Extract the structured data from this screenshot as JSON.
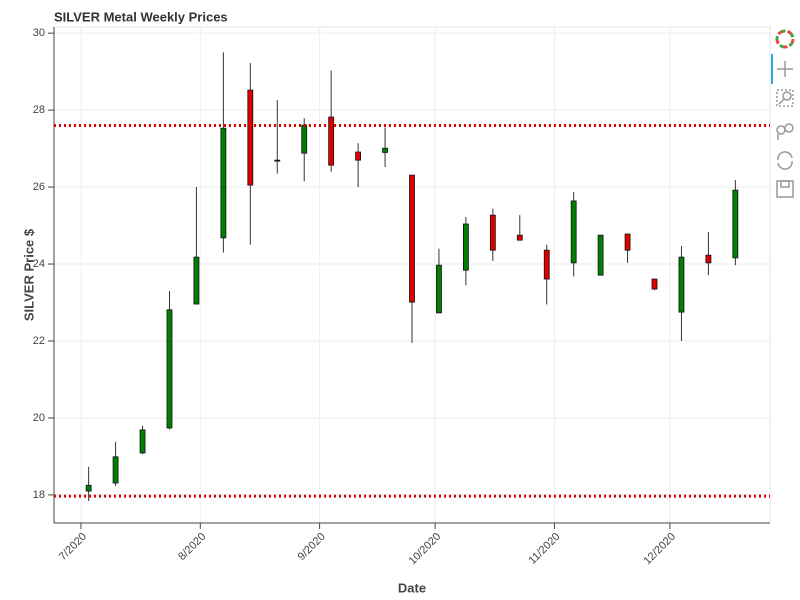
{
  "chart_data": {
    "type": "candlestick",
    "title": "SILVER Metal Weekly Prices",
    "x_label": "Date",
    "y_label": "SILVER Price $",
    "x": [
      "2020-07-03",
      "2020-07-10",
      "2020-07-17",
      "2020-07-24",
      "2020-07-31",
      "2020-08-07",
      "2020-08-14",
      "2020-08-21",
      "2020-08-28",
      "2020-09-04",
      "2020-09-11",
      "2020-09-18",
      "2020-09-25",
      "2020-10-02",
      "2020-10-09",
      "2020-10-16",
      "2020-10-23",
      "2020-10-30",
      "2020-11-06",
      "2020-11-13",
      "2020-11-20",
      "2020-11-27",
      "2020-12-04",
      "2020-12-11",
      "2020-12-18"
    ],
    "open": [
      18.1,
      18.31,
      19.09,
      19.74,
      22.96,
      24.68,
      28.52,
      26.7,
      26.88,
      27.82,
      26.91,
      26.9,
      26.31,
      22.73,
      23.84,
      25.27,
      24.75,
      24.36,
      24.03,
      23.71,
      24.78,
      23.61,
      22.75,
      24.23,
      24.16
    ],
    "high": [
      18.73,
      19.38,
      19.8,
      23.3,
      26.0,
      29.5,
      29.22,
      28.26,
      27.79,
      29.03,
      27.14,
      27.55,
      26.31,
      24.4,
      25.22,
      25.44,
      25.27,
      24.5,
      25.87,
      24.75,
      24.78,
      23.61,
      24.47,
      24.83,
      26.18
    ],
    "low": [
      17.84,
      18.23,
      19.06,
      19.7,
      22.96,
      24.3,
      24.5,
      26.35,
      26.15,
      26.4,
      26.0,
      26.52,
      21.95,
      22.73,
      23.45,
      24.08,
      24.62,
      22.95,
      23.68,
      23.71,
      24.03,
      23.32,
      22.0,
      23.71,
      23.97
    ],
    "close": [
      18.25,
      18.99,
      19.69,
      22.81,
      24.18,
      27.53,
      26.05,
      26.68,
      27.61,
      26.57,
      26.7,
      27.01,
      23.01,
      23.97,
      25.04,
      24.36,
      24.62,
      23.61,
      25.64,
      24.75,
      24.36,
      23.35,
      24.18,
      24.03,
      25.92
    ],
    "increasing_color": "#008000",
    "decreasing_color": "#e00000",
    "hlines": [
      27.6,
      17.97
    ],
    "hline_color": "#e00000",
    "xlim": [
      "2020-06-24",
      "2020-12-27"
    ],
    "xticks": [
      {
        "value": "2020-07-01",
        "label": "7/2020"
      },
      {
        "value": "2020-08-01",
        "label": "8/2020"
      },
      {
        "value": "2020-09-01",
        "label": "9/2020"
      },
      {
        "value": "2020-10-01",
        "label": "10/2020"
      },
      {
        "value": "2020-11-01",
        "label": "11/2020"
      },
      {
        "value": "2020-12-01",
        "label": "12/2020"
      }
    ],
    "ylim": [
      17.27,
      30.16
    ],
    "yticks": [
      18,
      20,
      22,
      24,
      26,
      28,
      30
    ],
    "grid": true
  }
}
